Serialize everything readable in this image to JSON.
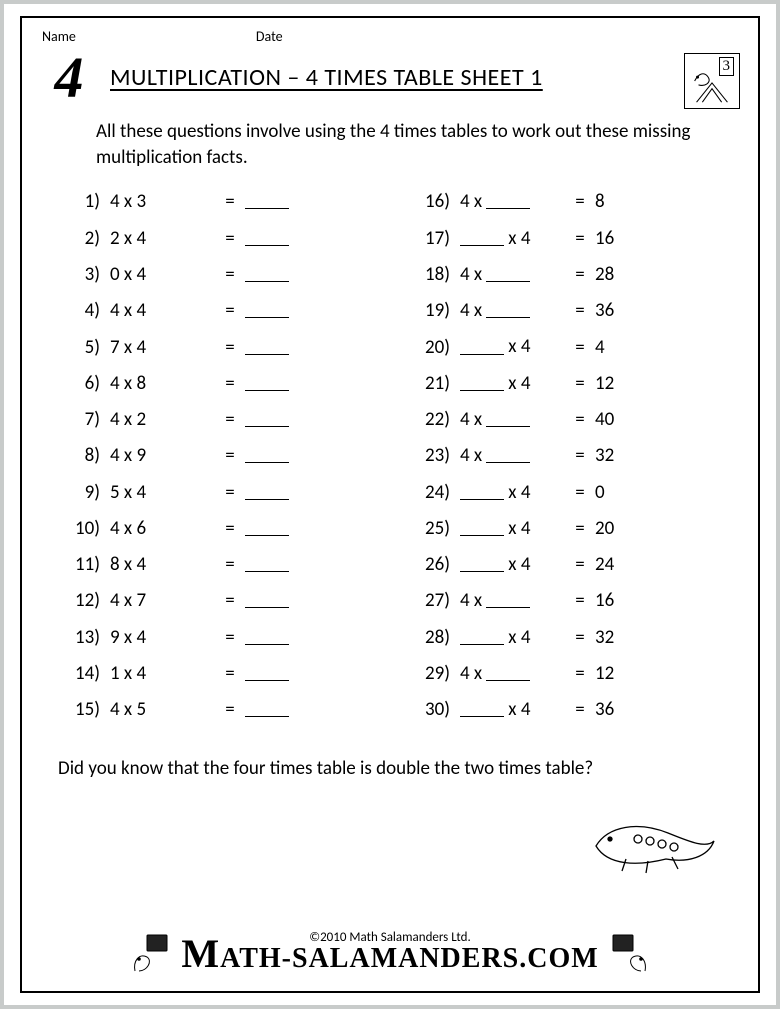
{
  "colors": {
    "page_bg": "#ffffff",
    "outer_bg": "#c8cbca",
    "text": "#000000",
    "border": "#000000"
  },
  "font": {
    "body_family": "Calibri, Arial, sans-serif",
    "body_size_pt": 14
  },
  "meta": {
    "name_label": "Name",
    "date_label": "Date"
  },
  "header": {
    "corner_numeral": "4",
    "title": "MULTIPLICATION – 4 TIMES TABLE SHEET 1",
    "badge_digit": "3"
  },
  "instructions": "All these questions involve using the 4 times tables to work out these missing multiplication facts.",
  "worksheet": {
    "blank_token": "____",
    "columns": 2,
    "rows_per_column": 15,
    "left": [
      {
        "n": 1,
        "a": "4",
        "b": "3",
        "ans": null
      },
      {
        "n": 2,
        "a": "2",
        "b": "4",
        "ans": null
      },
      {
        "n": 3,
        "a": "0",
        "b": "4",
        "ans": null
      },
      {
        "n": 4,
        "a": "4",
        "b": "4",
        "ans": null
      },
      {
        "n": 5,
        "a": "7",
        "b": "4",
        "ans": null
      },
      {
        "n": 6,
        "a": "4",
        "b": "8",
        "ans": null
      },
      {
        "n": 7,
        "a": "4",
        "b": "2",
        "ans": null
      },
      {
        "n": 8,
        "a": "4",
        "b": "9",
        "ans": null
      },
      {
        "n": 9,
        "a": "5",
        "b": "4",
        "ans": null
      },
      {
        "n": 10,
        "a": "4",
        "b": "6",
        "ans": null
      },
      {
        "n": 11,
        "a": "8",
        "b": "4",
        "ans": null
      },
      {
        "n": 12,
        "a": "4",
        "b": "7",
        "ans": null
      },
      {
        "n": 13,
        "a": "9",
        "b": "4",
        "ans": null
      },
      {
        "n": 14,
        "a": "1",
        "b": "4",
        "ans": null
      },
      {
        "n": 15,
        "a": "4",
        "b": "5",
        "ans": null
      }
    ],
    "right": [
      {
        "n": 16,
        "a": "4",
        "b": null,
        "ans": "8"
      },
      {
        "n": 17,
        "a": null,
        "b": "4",
        "ans": "16"
      },
      {
        "n": 18,
        "a": "4",
        "b": null,
        "ans": "28"
      },
      {
        "n": 19,
        "a": "4",
        "b": null,
        "ans": "36"
      },
      {
        "n": 20,
        "a": null,
        "b": "4",
        "ans": "4"
      },
      {
        "n": 21,
        "a": null,
        "b": "4",
        "ans": "12"
      },
      {
        "n": 22,
        "a": "4",
        "b": null,
        "ans": "40"
      },
      {
        "n": 23,
        "a": "4",
        "b": null,
        "ans": "32"
      },
      {
        "n": 24,
        "a": null,
        "b": "4",
        "ans": "0"
      },
      {
        "n": 25,
        "a": null,
        "b": "4",
        "ans": "20"
      },
      {
        "n": 26,
        "a": null,
        "b": "4",
        "ans": "24"
      },
      {
        "n": 27,
        "a": "4",
        "b": null,
        "ans": "16"
      },
      {
        "n": 28,
        "a": null,
        "b": "4",
        "ans": "32"
      },
      {
        "n": 29,
        "a": "4",
        "b": null,
        "ans": "12"
      },
      {
        "n": 30,
        "a": null,
        "b": "4",
        "ans": "36"
      }
    ]
  },
  "tip": "Did you know that the four times table is double the two times table?",
  "footer": {
    "copyright": "©2010 Math Salamanders Ltd.",
    "site": "MATH-SALAMANDERS.COM"
  }
}
